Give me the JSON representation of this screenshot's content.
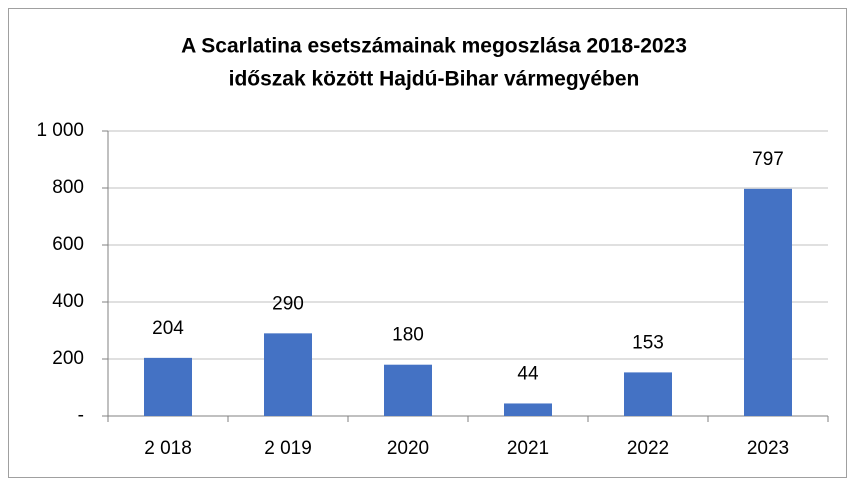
{
  "chart_data": {
    "type": "bar",
    "title": [
      "A Scarlatina esetszámainak megoszlása 2018-2023",
      "időszak között Hajdú-Bihar vármegyében"
    ],
    "categories": [
      "2 018",
      "2 019",
      "2020",
      "2021",
      "2022",
      "2023"
    ],
    "values": [
      204,
      290,
      180,
      44,
      153,
      797
    ],
    "color": "#4472c4",
    "ylim": [
      0,
      1000
    ],
    "yticks": [
      {
        "value": 0,
        "label": "-"
      },
      200,
      400,
      600,
      800,
      {
        "value": 1000,
        "label": "1 000"
      }
    ],
    "grid": true
  }
}
